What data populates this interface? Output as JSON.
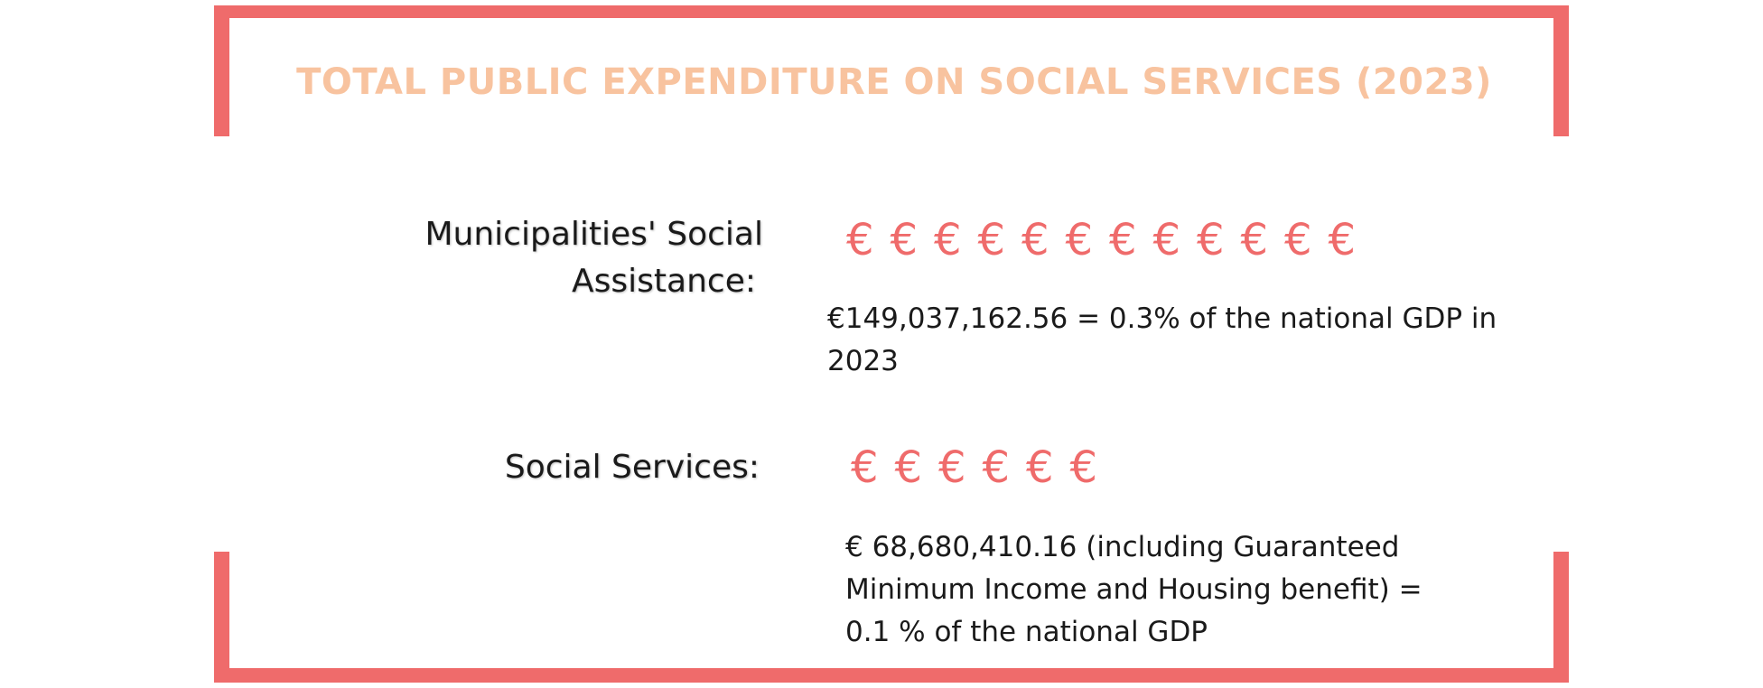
{
  "chart_data": {
    "type": "table",
    "title": "TOTAL PUBLIC EXPENDITURE ON SOCIAL SERVICES (2023)",
    "rows": [
      {
        "label": "Municipalities' Social Assistance:",
        "label_lines": [
          "Municipalities' Social",
          "Assistance:"
        ],
        "symbol_count": 12,
        "symbol": "€",
        "value": 149037162.56,
        "gdp_share_percent": 0.3,
        "detail_lines": [
          "€149,037,162.56 = 0.3% of the national GDP in",
          "2023"
        ]
      },
      {
        "label": "Social Services:",
        "label_lines": [
          "Social Services:"
        ],
        "symbol_count": 6,
        "symbol": "€",
        "value": 68680410.16,
        "gdp_share_percent": 0.1,
        "detail_lines": [
          "€ 68,680,410.16 (including Guaranteed",
          "Minimum Income and Housing benefit) =",
          "0.1 % of the national GDP"
        ]
      }
    ]
  },
  "colors": {
    "frame": "#ef6b6b",
    "title": "#f8c39f",
    "symbol": "#ef6b6b",
    "text": "#1a1a1a"
  }
}
